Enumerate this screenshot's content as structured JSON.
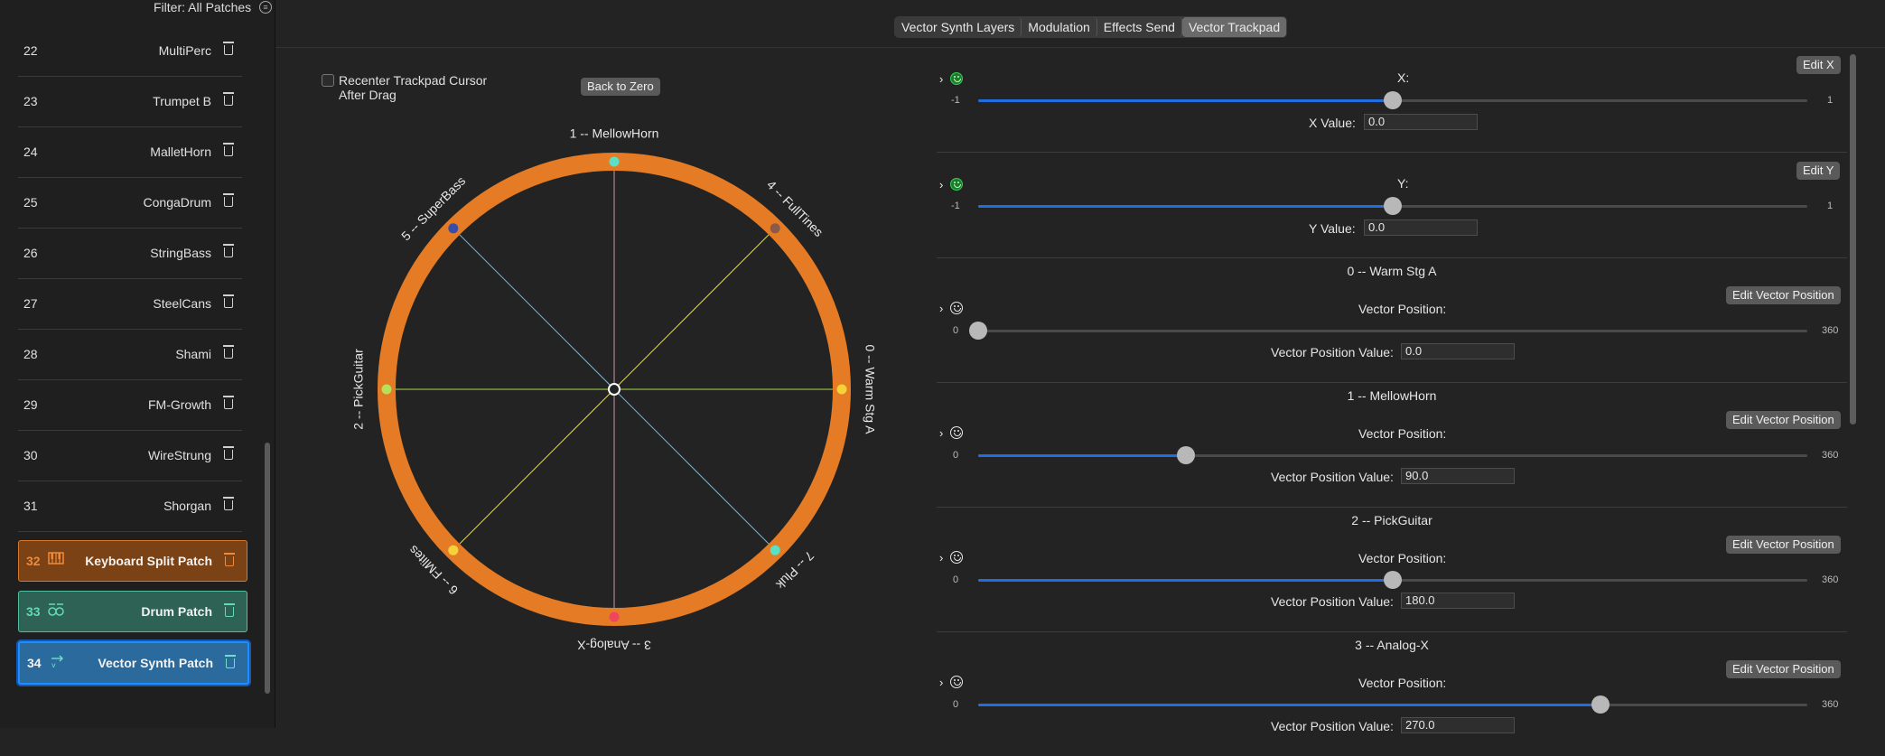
{
  "sidebar": {
    "filter_label": "Filter: All Patches",
    "patches": [
      {
        "num": "22",
        "name": "MultiPerc"
      },
      {
        "num": "23",
        "name": "Trumpet B"
      },
      {
        "num": "24",
        "name": "MalletHorn"
      },
      {
        "num": "25",
        "name": "CongaDrum"
      },
      {
        "num": "26",
        "name": "StringBass"
      },
      {
        "num": "27",
        "name": "SteelCans"
      },
      {
        "num": "28",
        "name": "Shami"
      },
      {
        "num": "29",
        "name": "FM-Growth"
      },
      {
        "num": "30",
        "name": "WireStrung"
      },
      {
        "num": "31",
        "name": "Shorgan"
      }
    ],
    "special": [
      {
        "num": "32",
        "name": "Keyboard Split Patch",
        "icon": "piano-keys-icon",
        "color": "#f08a3a"
      },
      {
        "num": "33",
        "name": "Drum Patch",
        "icon": "drum-kit-icon",
        "color": "#5fdcb4"
      },
      {
        "num": "34",
        "name": "Vector Synth Patch",
        "icon": "vector-icon",
        "color": "#2b6a9c"
      }
    ]
  },
  "tabs": [
    "Vector Synth Layers",
    "Modulation",
    "Effects Send",
    "Vector Trackpad"
  ],
  "active_tab": "Vector Trackpad",
  "trackpad": {
    "recenter_label": "Recenter Trackpad Cursor After Drag",
    "back_to_zero_label": "Back to Zero",
    "ring_color": "#e57c25",
    "layers": [
      {
        "label": "0 -- Warm Stg A",
        "angle": 0,
        "color": "#f3d23a"
      },
      {
        "label": "1 -- MellowHorn",
        "angle": 90,
        "color": "#59e0c5"
      },
      {
        "label": "2 -- PickGuitar",
        "angle": 180,
        "color": "#b7e05a"
      },
      {
        "label": "3 -- Analog-X",
        "angle": 270,
        "color": "#f0445f"
      },
      {
        "label": "4 -- FullTines",
        "angle": 45,
        "color": "#8a5a4a"
      },
      {
        "label": "5 -- SuperBass",
        "angle": 135,
        "color": "#3a4ea8"
      },
      {
        "label": "6 -- FMlites",
        "angle": 225,
        "color": "#f3d23a"
      },
      {
        "label": "7 -- Pluk",
        "angle": 315,
        "color": "#59e0c5"
      }
    ],
    "axis_colors": {
      "vertical": "#c89aa0",
      "horizontal": "#a8d84a",
      "diag_a": "#d8d86a",
      "diag_b": "#6ab8e0"
    }
  },
  "panel": {
    "x": {
      "edit_label": "Edit X",
      "slider_label": "X:",
      "min": "-1",
      "max": "1",
      "value_fraction": 0.5,
      "value_label": "X Value:",
      "value": "0.0"
    },
    "y": {
      "edit_label": "Edit Y",
      "slider_label": "Y:",
      "min": "-1",
      "max": "1",
      "value_fraction": 0.5,
      "value_label": "Y Value:",
      "value": "0.0"
    },
    "vector_sections": [
      {
        "title": "0 -- Warm Stg A",
        "edit_label": "Edit Vector Position",
        "slider_label": "Vector Position:",
        "min": "0",
        "max": "360",
        "value_fraction": 0.0,
        "value_label": "Vector Position Value:",
        "value": "0.0"
      },
      {
        "title": "1 -- MellowHorn",
        "edit_label": "Edit Vector Position",
        "slider_label": "Vector Position:",
        "min": "0",
        "max": "360",
        "value_fraction": 0.25,
        "value_label": "Vector Position Value:",
        "value": "90.0"
      },
      {
        "title": "2 -- PickGuitar",
        "edit_label": "Edit Vector Position",
        "slider_label": "Vector Position:",
        "min": "0",
        "max": "360",
        "value_fraction": 0.5,
        "value_label": "Vector Position Value:",
        "value": "180.0"
      },
      {
        "title": "3 -- Analog-X",
        "edit_label": "Edit Vector Position",
        "slider_label": "Vector Position:",
        "min": "0",
        "max": "360",
        "value_fraction": 0.75,
        "value_label": "Vector Position Value:",
        "value": "270.0"
      }
    ]
  }
}
